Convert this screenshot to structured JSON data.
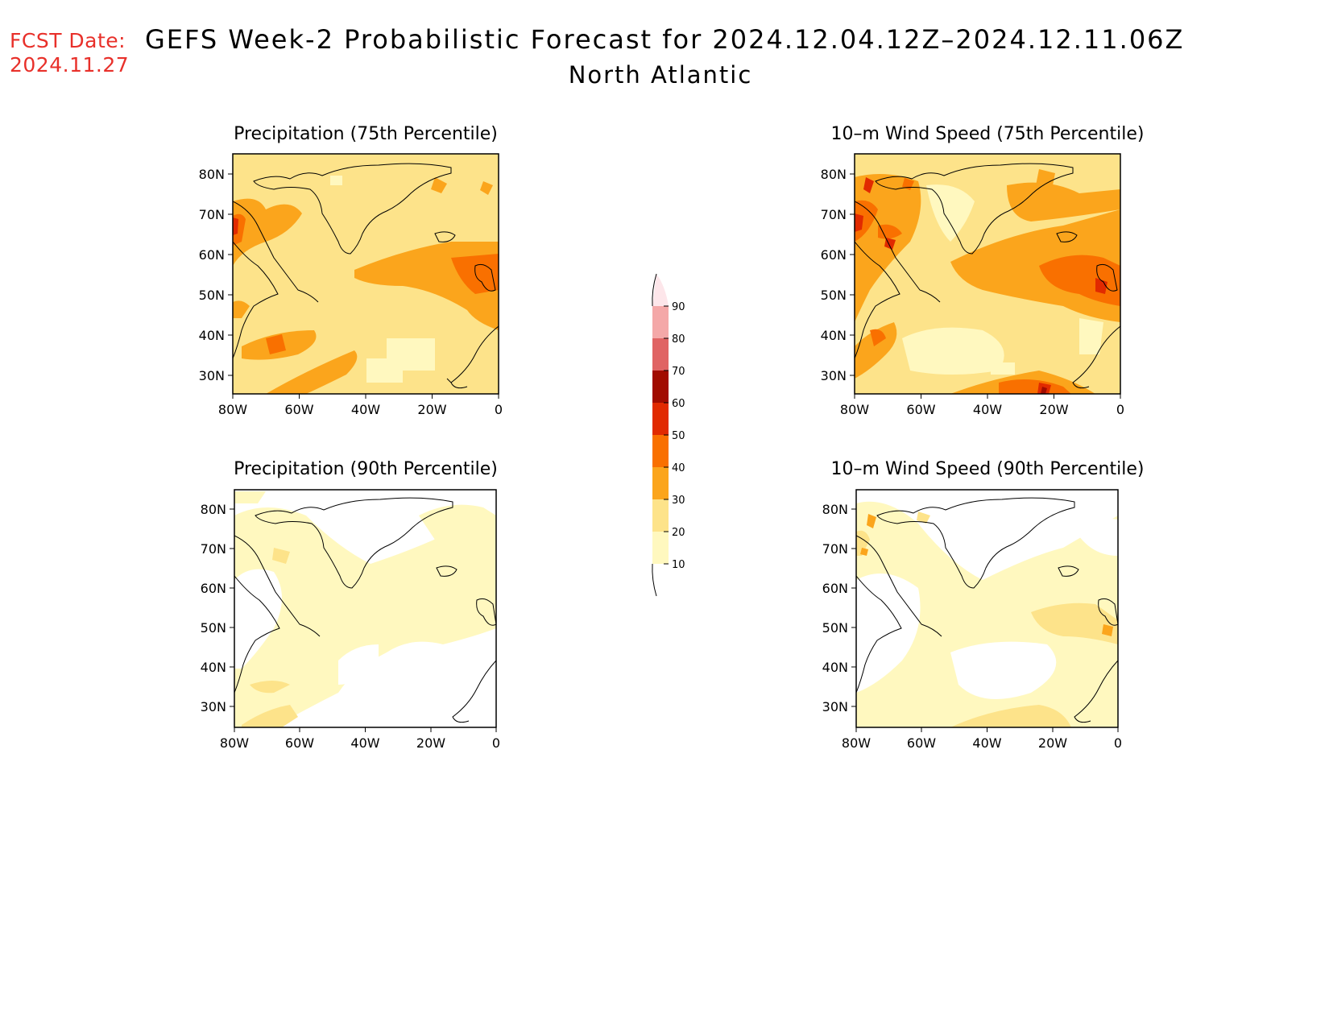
{
  "header": {
    "fcst_label": "FCST Date:",
    "fcst_date": "2024.11.27",
    "title": "GEFS Week-2 Probabilistic Forecast for 2024.12.04.12Z–2024.12.11.06Z",
    "region": "North Atlantic"
  },
  "axes": {
    "x_ticks": [
      "80W",
      "60W",
      "40W",
      "20W",
      "0"
    ],
    "y_ticks": [
      "80N",
      "70N",
      "60N",
      "50N",
      "40N",
      "30N"
    ]
  },
  "panels": [
    {
      "id": "precip-75",
      "title": "Precipitation (75th Percentile)"
    },
    {
      "id": "wind-75",
      "title": "10–m Wind Speed (75th Percentile)"
    },
    {
      "id": "precip-90",
      "title": "Precipitation (90th Percentile)"
    },
    {
      "id": "wind-90",
      "title": "10–m Wind Speed (90th Percentile)"
    }
  ],
  "colorbar": {
    "labels": [
      "90",
      "80",
      "70",
      "60",
      "50",
      "40",
      "30",
      "20",
      "10"
    ],
    "colors": {
      "c10": "#fff8bf",
      "c20": "#fde38a",
      "c30": "#fba51c",
      "c40": "#f97000",
      "c50": "#e12a00",
      "c60": "#a10c00",
      "c70": "#e06464",
      "c80": "#f4a8a8",
      "c90": "#fde6ea"
    }
  }
}
